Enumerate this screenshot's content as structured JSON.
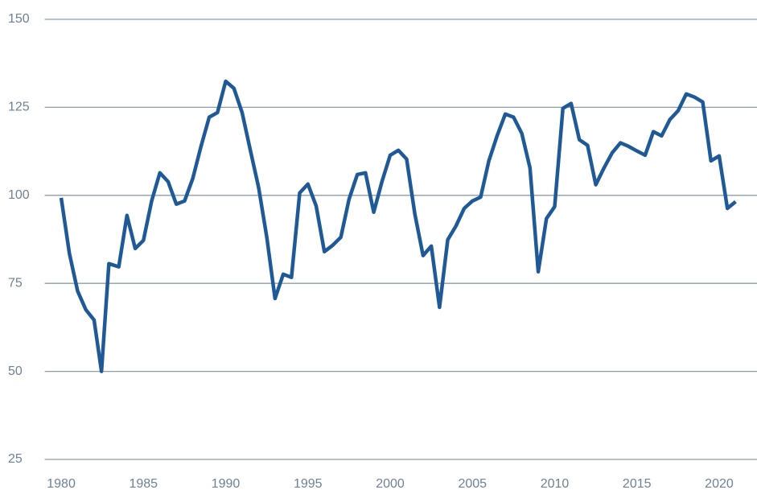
{
  "chart_data": {
    "type": "line",
    "x": [
      1980.0,
      1980.5,
      1981.0,
      1981.5,
      1982.0,
      1982.45,
      1982.9,
      1983.5,
      1984.0,
      1984.5,
      1985.0,
      1985.5,
      1986.0,
      1986.5,
      1987.0,
      1987.5,
      1988.0,
      1988.5,
      1989.0,
      1989.5,
      1990.0,
      1990.5,
      1991.0,
      1991.5,
      1992.0,
      1992.5,
      1993.0,
      1993.5,
      1994.0,
      1994.5,
      1995.0,
      1995.5,
      1996.0,
      1996.5,
      1997.0,
      1997.5,
      1998.0,
      1998.5,
      1999.0,
      1999.5,
      2000.0,
      2000.5,
      2001.0,
      2001.5,
      2002.0,
      2002.5,
      2003.0,
      2003.5,
      2004.0,
      2004.5,
      2005.0,
      2005.5,
      2006.0,
      2006.5,
      2007.0,
      2007.5,
      2008.0,
      2008.5,
      2009.0,
      2009.5,
      2010.0,
      2010.5,
      2011.0,
      2011.5,
      2012.0,
      2012.5,
      2013.0,
      2013.5,
      2014.0,
      2014.5,
      2015.0,
      2015.5,
      2016.0,
      2016.5,
      2017.0,
      2017.5,
      2018.0,
      2018.5,
      2019.0,
      2019.5,
      2020.0,
      2020.5,
      2021.0
    ],
    "series": [
      {
        "color": "#1f5a96",
        "values": [
          99.3,
          83.5,
          72.8,
          67.5,
          64.6,
          50,
          80.6,
          79.7,
          94.3,
          84.9,
          87.2,
          98.4,
          106.4,
          103.9,
          97.5,
          98.4,
          104.8,
          113.9,
          122.2,
          123.5,
          132.4,
          130.4,
          123.5,
          112.8,
          102.3,
          88.1,
          70.7,
          77.6,
          76.7,
          100.7,
          103.2,
          97.0,
          84.0,
          85.8,
          88.1,
          98.9,
          105.9,
          106.4,
          95.2,
          103.9,
          111.4,
          112.8,
          110.3,
          94.7,
          82.9,
          85.6,
          68.2,
          87.4,
          91.3,
          96.3,
          98.4,
          99.5,
          109.8,
          116.9,
          123.1,
          122.2,
          117.6,
          107.8,
          78.3,
          93.4,
          96.8,
          124.7,
          126.1,
          115.8,
          114.2,
          103.0,
          107.8,
          112.1,
          114.9,
          113.9,
          112.6,
          111.4,
          118.1,
          116.9,
          121.5,
          124.0,
          128.8,
          127.9,
          126.5,
          109.8,
          111.2,
          96.3,
          98.2
        ]
      }
    ],
    "xlim": [
      1979,
      2022.3
    ],
    "xticks": [
      1980,
      1985,
      1990,
      1995,
      2000,
      2005,
      2010,
      2015,
      2020
    ],
    "ylim": [
      25,
      150
    ],
    "yticks": [
      25,
      50,
      75,
      100,
      125,
      150
    ],
    "grid": true
  }
}
